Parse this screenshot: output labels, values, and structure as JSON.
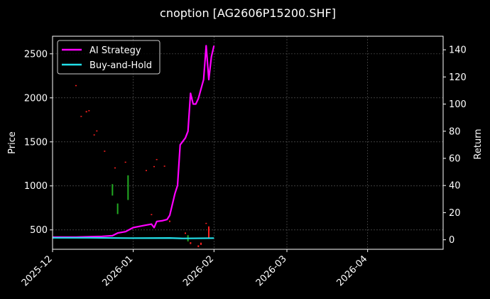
{
  "chart_data": {
    "type": "line",
    "title": "cnoption [AG2606P15200.SHF]",
    "ylabel_left": "Price",
    "ylabel_right": "Return",
    "x_range": [
      "2025-12-01",
      "2026-04-30"
    ],
    "x_ticks": [
      "2025-12",
      "2026-01",
      "2026-02",
      "2026-03",
      "2026-04"
    ],
    "y_left_range": [
      280,
      2700
    ],
    "y_left_ticks": [
      500,
      1000,
      1500,
      2000,
      2500
    ],
    "y_right_range": [
      -7,
      150
    ],
    "y_right_ticks": [
      0,
      20,
      40,
      60,
      80,
      100,
      120,
      140
    ],
    "grid": true,
    "legend_position": "top-left",
    "series": [
      {
        "name": "AI Strategy",
        "axis": "right",
        "color": "#ff00ff",
        "points": [
          [
            "2025-12-01",
            2
          ],
          [
            "2025-12-10",
            2
          ],
          [
            "2025-12-20",
            2.5
          ],
          [
            "2025-12-24",
            3
          ],
          [
            "2025-12-26",
            5
          ],
          [
            "2025-12-29",
            6
          ],
          [
            "2026-01-01",
            9
          ],
          [
            "2026-01-05",
            10.5
          ],
          [
            "2026-01-08",
            11.5
          ],
          [
            "2026-01-09",
            9
          ],
          [
            "2026-01-10",
            13.5
          ],
          [
            "2026-01-12",
            14
          ],
          [
            "2026-01-14",
            15
          ],
          [
            "2026-01-15",
            18
          ],
          [
            "2026-01-17",
            34
          ],
          [
            "2026-01-18",
            40
          ],
          [
            "2026-01-19",
            70
          ],
          [
            "2026-01-21",
            75
          ],
          [
            "2026-01-22",
            80
          ],
          [
            "2026-01-23",
            108
          ],
          [
            "2026-01-24",
            100
          ],
          [
            "2026-01-25",
            100
          ],
          [
            "2026-01-26",
            104
          ],
          [
            "2026-01-28",
            118
          ],
          [
            "2026-01-29",
            143
          ],
          [
            "2026-01-30",
            118
          ],
          [
            "2026-01-31",
            135
          ],
          [
            "2026-02-01",
            143
          ]
        ]
      },
      {
        "name": "Buy-and-Hold",
        "axis": "right",
        "color": "#22e0ea",
        "points": [
          [
            "2025-12-01",
            1.5
          ],
          [
            "2025-12-15",
            1.5
          ],
          [
            "2025-12-31",
            1.2
          ],
          [
            "2026-01-15",
            1.3
          ],
          [
            "2026-01-20",
            1.0
          ],
          [
            "2026-02-01",
            1.2
          ]
        ]
      }
    ],
    "candles": [
      {
        "date": "2025-12-10",
        "high": 2145,
        "low": 2135,
        "color": "#ff2020"
      },
      {
        "date": "2025-12-12",
        "high": 1795,
        "low": 1785,
        "color": "#ff2020"
      },
      {
        "date": "2025-12-14",
        "high": 1850,
        "low": 1835,
        "color": "#ff2020"
      },
      {
        "date": "2025-12-15",
        "high": 1860,
        "low": 1848,
        "color": "#ff2020"
      },
      {
        "date": "2025-12-17",
        "high": 1585,
        "low": 1575,
        "color": "#ff2020"
      },
      {
        "date": "2025-12-18",
        "high": 1630,
        "low": 1620,
        "color": "#ff2020"
      },
      {
        "date": "2025-12-21",
        "high": 1400,
        "low": 1390,
        "color": "#ff2020"
      },
      {
        "date": "2025-12-24",
        "high": 1020,
        "low": 890,
        "color": "#22aa22"
      },
      {
        "date": "2025-12-25",
        "high": 1210,
        "low": 1200,
        "color": "#ff2020"
      },
      {
        "date": "2025-12-26",
        "high": 800,
        "low": 680,
        "color": "#22aa22"
      },
      {
        "date": "2025-12-29",
        "high": 1275,
        "low": 1265,
        "color": "#ff2020"
      },
      {
        "date": "2025-12-30",
        "high": 1120,
        "low": 840,
        "color": "#22aa22"
      },
      {
        "date": "2026-01-06",
        "high": 1180,
        "low": 1170,
        "color": "#ff2020"
      },
      {
        "date": "2026-01-08",
        "high": 680,
        "low": 670,
        "color": "#ff2020"
      },
      {
        "date": "2026-01-09",
        "high": 1225,
        "low": 1215,
        "color": "#ff2020"
      },
      {
        "date": "2026-01-10",
        "high": 1305,
        "low": 1295,
        "color": "#ff2020"
      },
      {
        "date": "2026-01-13",
        "high": 1230,
        "low": 1220,
        "color": "#ff2020"
      },
      {
        "date": "2026-01-15",
        "high": 605,
        "low": 590,
        "color": "#ff2020"
      },
      {
        "date": "2026-01-21",
        "high": 470,
        "low": 455,
        "color": "#ff2020"
      },
      {
        "date": "2026-01-22",
        "high": 440,
        "low": 370,
        "color": "#22aa22"
      },
      {
        "date": "2026-01-23",
        "high": 360,
        "low": 340,
        "color": "#ff2020"
      },
      {
        "date": "2026-01-26",
        "high": 325,
        "low": 305,
        "color": "#ff2020"
      },
      {
        "date": "2026-01-27",
        "high": 355,
        "low": 330,
        "color": "#ff2020"
      },
      {
        "date": "2026-01-29",
        "high": 580,
        "low": 570,
        "color": "#ff2020"
      },
      {
        "date": "2026-01-30",
        "high": 540,
        "low": 400,
        "color": "#ff2020"
      }
    ]
  }
}
